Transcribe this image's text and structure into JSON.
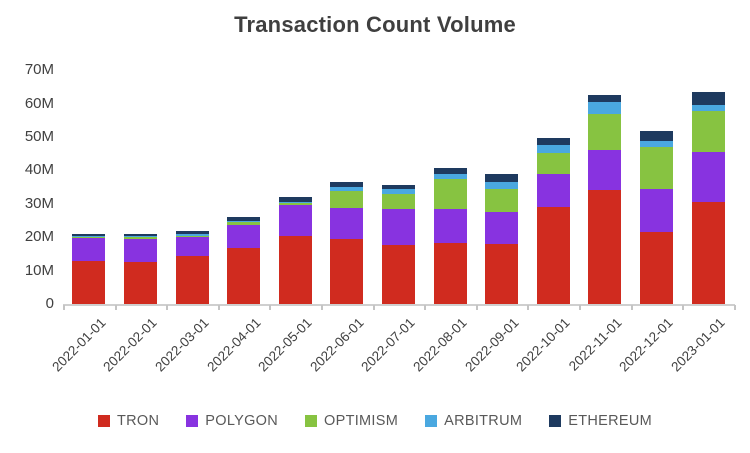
{
  "title": "Transaction Count Volume",
  "chart_data": {
    "type": "bar",
    "stacked": true,
    "title": "Transaction Count Volume",
    "xlabel": "",
    "ylabel": "",
    "unit": "M",
    "ylim": [
      0,
      70
    ],
    "y_ticks": [
      "0",
      "10M",
      "20M",
      "30M",
      "40M",
      "50M",
      "60M",
      "70M"
    ],
    "y_tick_values": [
      0,
      10,
      20,
      30,
      40,
      50,
      60,
      70
    ],
    "grid": false,
    "legend_position": "bottom",
    "categories": [
      "2022-01-01",
      "2022-02-01",
      "2022-03-01",
      "2022-04-01",
      "2022-05-01",
      "2022-06-01",
      "2022-07-01",
      "2022-08-01",
      "2022-09-01",
      "2022-10-01",
      "2022-11-01",
      "2022-12-01",
      "2023-01-01"
    ],
    "series": [
      {
        "name": "TRON",
        "color": "#d02b1f",
        "values": [
          12.8,
          12.6,
          14.3,
          16.7,
          20.3,
          19.5,
          17.7,
          18.4,
          18.0,
          29.0,
          34.0,
          21.7,
          30.4
        ]
      },
      {
        "name": "POLYGON",
        "color": "#8833e0",
        "values": [
          7.0,
          7.0,
          6.0,
          7.0,
          9.3,
          9.2,
          10.8,
          10.1,
          9.5,
          9.8,
          12.0,
          12.7,
          15.0
        ]
      },
      {
        "name": "OPTIMISM",
        "color": "#87c341",
        "values": [
          0.3,
          0.6,
          0.2,
          1.0,
          0.5,
          5.0,
          4.5,
          8.9,
          7.0,
          6.3,
          11.0,
          12.5,
          12.5
        ]
      },
      {
        "name": "ARBITRUM",
        "color": "#4aa8e0",
        "values": [
          0.2,
          0.1,
          0.5,
          0.2,
          0.5,
          1.3,
          1.3,
          1.5,
          2.0,
          2.4,
          3.5,
          2.0,
          1.8
        ]
      },
      {
        "name": "ETHEREUM",
        "color": "#1e3a5f",
        "values": [
          0.8,
          0.6,
          1.0,
          1.0,
          1.3,
          1.4,
          1.4,
          1.7,
          2.5,
          2.3,
          2.2,
          3.0,
          3.7
        ]
      }
    ]
  },
  "colors": {
    "background": "#ffffff",
    "title_text": "#3f3f3f",
    "axis_text": "#404040",
    "legend_text": "#595959",
    "axis_line": "#cfcfcf"
  }
}
